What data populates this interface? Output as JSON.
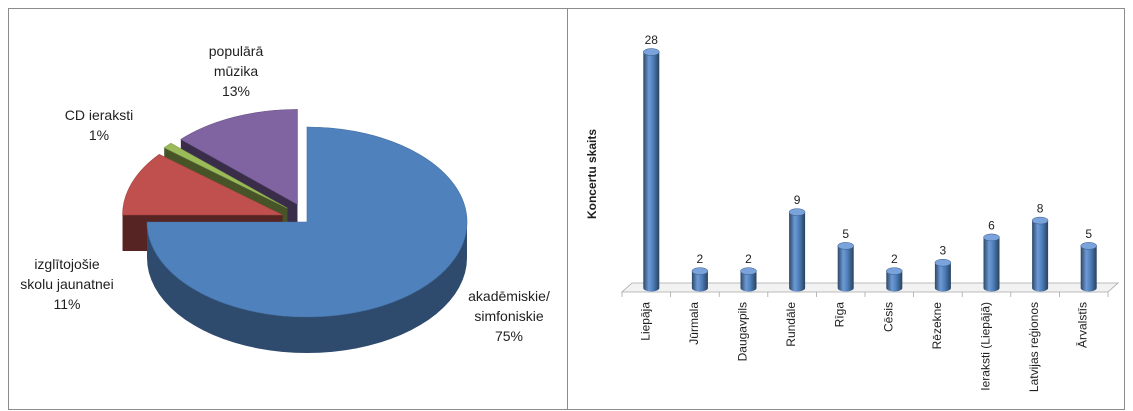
{
  "chart_data": [
    {
      "type": "pie",
      "title": "",
      "slices": [
        {
          "label": "akadēmiskie/ simfoniskie",
          "lines": [
            "akadēmiskie/",
            "simfoniskie",
            "75%"
          ],
          "percent": 75,
          "color": "#4f81bd"
        },
        {
          "label": "izglītojošie skolu jaunatnei",
          "lines": [
            "izglītojošie",
            "skolu jaunatnei",
            "11%"
          ],
          "percent": 11,
          "color": "#c0504d"
        },
        {
          "label": "CD ieraksti",
          "lines": [
            "CD ieraksti",
            "1%"
          ],
          "percent": 1,
          "color": "#9bbb59"
        },
        {
          "label": "populārā mūzika",
          "lines": [
            "populārā",
            "mūzika",
            "13%"
          ],
          "percent": 13,
          "color": "#8064a2"
        }
      ]
    },
    {
      "type": "bar",
      "title": "",
      "ylabel": "Koncertu skaits",
      "xlabel": "",
      "ylim": [
        0,
        28
      ],
      "color": "#4f81bd",
      "categories": [
        "Liepāja",
        "Jūrmala",
        "Daugavpils",
        "Rundāle",
        "Rīga",
        "Cēsis",
        "Rēzekne",
        "Ieraksti (Liepājā)",
        "Latvijas reģionos",
        "Ārvalstīs"
      ],
      "values": [
        28,
        2,
        2,
        9,
        5,
        2,
        3,
        6,
        8,
        5
      ]
    }
  ]
}
